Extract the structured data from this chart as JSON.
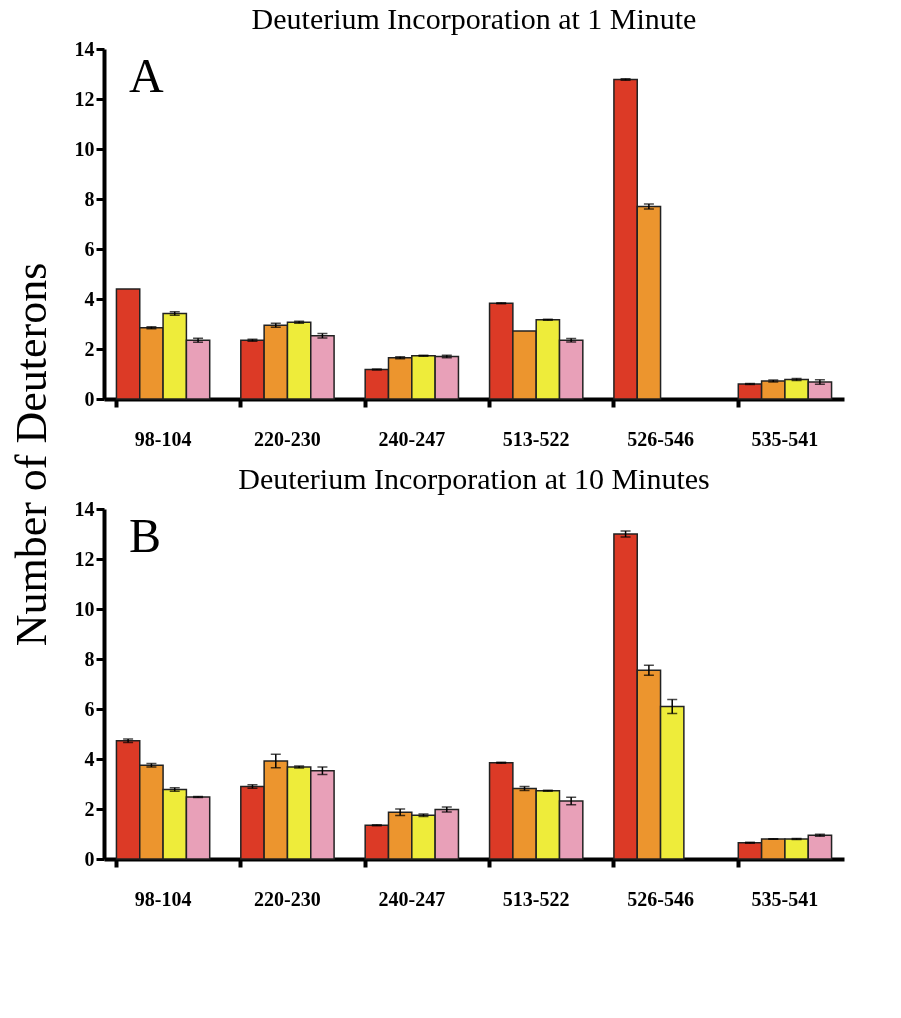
{
  "chart_data": [
    {
      "type": "bar",
      "title": "Deuterium Incorporation at 1 Minute",
      "ylabel": "Number of Deuterons",
      "annotations": [
        "A"
      ],
      "categories": [
        "98-104",
        "220-230",
        "240-247",
        "513-522",
        "526-546",
        "535-541"
      ],
      "ylim": [
        0,
        14
      ],
      "yticks": [
        0,
        2,
        4,
        6,
        8,
        10,
        12,
        14
      ],
      "grid": false,
      "legend": false,
      "series": [
        {
          "color": "#dc3a26",
          "values": [
            4.4,
            2.35,
            1.18,
            3.83,
            12.78,
            0.6
          ],
          "errors": [
            null,
            0.04,
            0.02,
            0.02,
            0.03,
            0.02
          ]
        },
        {
          "color": "#ec952e",
          "values": [
            2.85,
            2.95,
            1.65,
            2.72,
            7.7,
            0.72
          ],
          "errors": [
            0.04,
            0.08,
            0.04,
            null,
            0.1,
            0.04
          ]
        },
        {
          "color": "#eeec3a",
          "values": [
            3.42,
            3.07,
            1.73,
            3.17,
            null,
            0.78
          ],
          "errors": [
            0.07,
            0.04,
            0.02,
            0.02,
            null,
            0.04
          ]
        },
        {
          "color": "#e8a0b8",
          "values": [
            2.35,
            2.53,
            1.7,
            2.35,
            null,
            0.68
          ],
          "errors": [
            0.08,
            0.09,
            0.05,
            0.07,
            null,
            0.09
          ]
        }
      ]
    },
    {
      "type": "bar",
      "title": "Deuterium Incorporation at 10 Minutes",
      "annotations": [
        "B"
      ],
      "categories": [
        "98-104",
        "220-230",
        "240-247",
        "513-522",
        "526-546",
        "535-541"
      ],
      "ylim": [
        0,
        14
      ],
      "yticks": [
        0,
        2,
        4,
        6,
        8,
        10,
        12,
        14
      ],
      "grid": false,
      "legend": false,
      "series": [
        {
          "color": "#dc3a26",
          "values": [
            4.73,
            2.9,
            1.35,
            3.85,
            13.0,
            0.65
          ],
          "errors": [
            0.07,
            0.07,
            0.02,
            0.02,
            0.12,
            0.02
          ]
        },
        {
          "color": "#ec952e",
          "values": [
            3.75,
            3.92,
            1.87,
            2.82,
            7.55,
            0.8
          ],
          "errors": [
            0.07,
            0.27,
            0.13,
            0.08,
            0.2,
            0.01
          ]
        },
        {
          "color": "#eeec3a",
          "values": [
            2.78,
            3.68,
            1.75,
            2.73,
            6.1,
            0.8
          ],
          "errors": [
            0.07,
            0.04,
            0.05,
            0.02,
            0.28,
            0.02
          ]
        },
        {
          "color": "#e8a0b8",
          "values": [
            2.48,
            3.53,
            1.98,
            2.32,
            null,
            0.95
          ],
          "errors": [
            0.02,
            0.15,
            0.1,
            0.15,
            null,
            0.04
          ]
        }
      ]
    }
  ]
}
